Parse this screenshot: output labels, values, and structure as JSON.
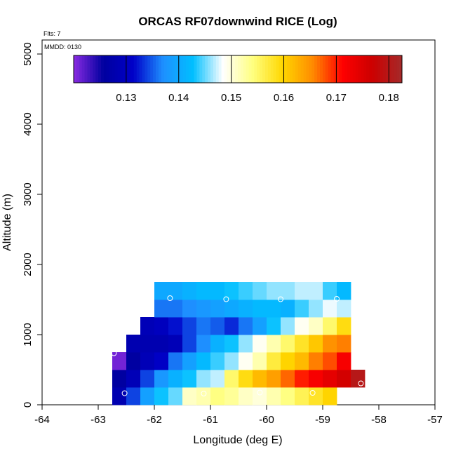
{
  "header": {
    "flts_label": "Flts: 7",
    "mmdd_label": "MMDD: 0130"
  },
  "chart_data": {
    "type": "heatmap",
    "title": "ORCAS RF07downwind RICE (Log)",
    "xlabel": "Longitude (deg E)",
    "ylabel": "Altitude (m)",
    "xlim": [
      -64,
      -57
    ],
    "ylim": [
      0,
      5200
    ],
    "x_ticks": [
      "-64",
      "-63",
      "-62",
      "-61",
      "-60",
      "-59",
      "-58",
      "-57"
    ],
    "x_tick_values": [
      -64,
      -63,
      -62,
      -61,
      -60,
      -59,
      -58,
      -57
    ],
    "y_ticks": [
      "0",
      "1000",
      "2000",
      "3000",
      "4000",
      "5000"
    ],
    "y_tick_values": [
      0,
      1000,
      2000,
      3000,
      4000,
      5000
    ],
    "cell_width_deg": 0.25,
    "cell_height_m": 250,
    "grid": false,
    "colorbar": {
      "range": [
        0.12,
        0.1825
      ],
      "ticks": [
        "0.13",
        "0.14",
        "0.15",
        "0.16",
        "0.17",
        "0.18"
      ],
      "tick_values": [
        0.13,
        0.14,
        0.15,
        0.16,
        0.17,
        0.18
      ],
      "colors": [
        "#8a2be2",
        "#00009f",
        "#0000c8",
        "#1e90ff",
        "#00bfff",
        "#ffffff",
        "#ffff80",
        "#ffd700",
        "#ff8c00",
        "#ff0000",
        "#cc0000",
        "#a52a2a"
      ],
      "location": "top"
    },
    "cells": [
      {
        "lon_start": -62.75,
        "alt_start": 0,
        "values": [
          0.128,
          0.134,
          0.139,
          0.143,
          0.145,
          0.151,
          0.152,
          0.154,
          0.153,
          0.151,
          0.15,
          0.152,
          0.154,
          0.156,
          0.158,
          0.16
        ]
      },
      {
        "lon_start": -62.75,
        "alt_start": 250,
        "values": [
          0.126,
          0.129,
          0.134,
          0.138,
          0.141,
          0.143,
          0.146,
          0.147,
          0.155,
          0.159,
          0.162,
          0.164,
          0.167,
          0.17,
          0.172,
          0.174,
          0.176,
          0.18
        ]
      },
      {
        "lon_start": -62.75,
        "alt_start": 500,
        "values": [
          0.121,
          0.126,
          0.129,
          0.131,
          0.136,
          0.139,
          0.142,
          0.144,
          0.146,
          0.149,
          0.152,
          0.157,
          0.16,
          0.162,
          0.166,
          0.168,
          0.172
        ]
      },
      {
        "lon_start": -62.5,
        "alt_start": 750,
        "values": [
          0.128,
          0.128,
          0.128,
          0.129,
          0.134,
          0.137,
          0.141,
          0.143,
          0.146,
          0.149,
          0.152,
          0.155,
          0.158,
          0.161,
          0.165,
          0.166
        ]
      },
      {
        "lon_start": -62.25,
        "alt_start": 1000,
        "values": [
          0.129,
          0.13,
          0.132,
          0.134,
          0.136,
          0.135,
          0.133,
          0.136,
          0.139,
          0.143,
          0.146,
          0.149,
          0.151,
          0.155,
          0.159
        ]
      },
      {
        "lon_start": -62,
        "alt_start": 1250,
        "values": [
          0.136,
          0.136,
          0.137,
          0.138,
          0.139,
          0.14,
          0.141,
          0.142,
          0.142,
          0.141,
          0.144,
          0.146,
          0.148,
          0.147
        ]
      },
      {
        "lon_start": -62,
        "alt_start": 1500,
        "values": [
          0.14,
          0.14,
          0.141,
          0.142,
          0.142,
          0.143,
          0.144,
          0.145,
          0.146,
          0.146,
          0.147,
          0.147,
          0.144,
          0.142
        ]
      }
    ],
    "markers": [
      {
        "lon": -62.72,
        "alt": 735
      },
      {
        "lon": -62.53,
        "alt": 165
      },
      {
        "lon": -61.72,
        "alt": 1520
      },
      {
        "lon": -61.12,
        "alt": 160
      },
      {
        "lon": -60.72,
        "alt": 1505
      },
      {
        "lon": -60.12,
        "alt": 175
      },
      {
        "lon": -59.75,
        "alt": 1505
      },
      {
        "lon": -59.18,
        "alt": 170
      },
      {
        "lon": -58.75,
        "alt": 1510
      },
      {
        "lon": -58.32,
        "alt": 305
      }
    ]
  }
}
